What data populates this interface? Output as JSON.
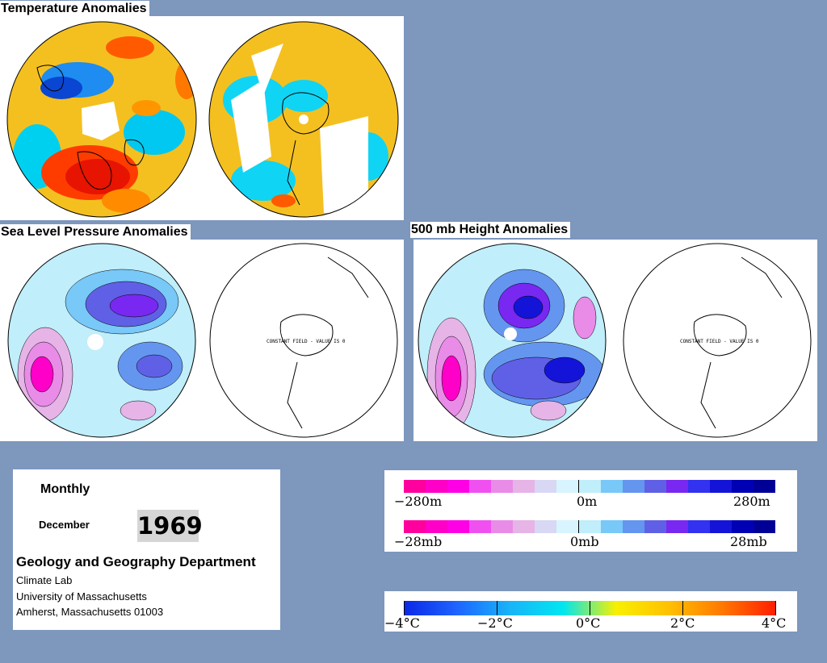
{
  "panels": {
    "temperature": {
      "title": "Temperature Anomalies"
    },
    "slp": {
      "title": "Sea Level Pressure Anomalies"
    },
    "height500": {
      "title": "500 mb Height Anomalies"
    }
  },
  "constant_field_note": "CONSTANT FIELD - VALUE IS 0",
  "info": {
    "frequency": "Monthly",
    "month": "December",
    "year": "1969",
    "department": "Geology and Geography Department",
    "lab": "Climate Lab",
    "university": "University of Massachusetts",
    "address": "Amherst, Massachusetts 01003"
  },
  "legends": {
    "height": {
      "ticks": [
        "−280m",
        "0m",
        "280m"
      ],
      "colors": [
        "#ff009e",
        "#ff00c8",
        "#ff00e6",
        "#f050f0",
        "#e88ce8",
        "#e6b4e6",
        "#d8d8f4",
        "#d8f4ff",
        "#c0eefa",
        "#78c8f8",
        "#6496f0",
        "#6060e6",
        "#7828f0",
        "#3232f0",
        "#1414d8",
        "#0000b4",
        "#000096"
      ]
    },
    "pressure": {
      "ticks": [
        "−28mb",
        "0mb",
        "28mb"
      ],
      "colors": [
        "#ff009e",
        "#ff00c8",
        "#ff00e6",
        "#f050f0",
        "#e88ce8",
        "#e6b4e6",
        "#d8d8f4",
        "#d8f4ff",
        "#c0eefa",
        "#78c8f8",
        "#6496f0",
        "#6060e6",
        "#7828f0",
        "#3232f0",
        "#1414d8",
        "#0000b4",
        "#000096"
      ]
    },
    "temperature": {
      "ticks": [
        "−4°C",
        "−2°C",
        "0°C",
        "2°C",
        "4°C"
      ],
      "gradient": [
        "#0a28e6",
        "#1e64ff",
        "#18b4f8",
        "#00e6f0",
        "#f8f000",
        "#ffc000",
        "#ff7800",
        "#ff1e00"
      ]
    }
  }
}
